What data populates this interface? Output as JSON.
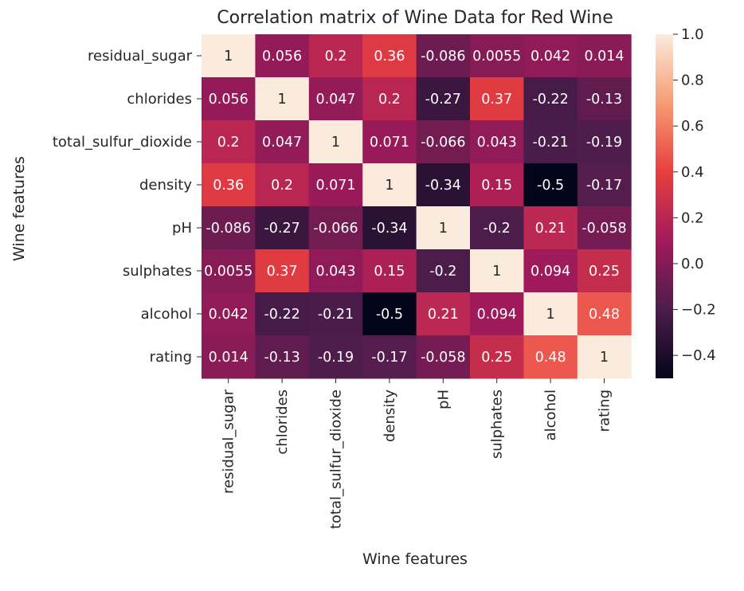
{
  "chart_data": {
    "type": "heatmap",
    "title": "Correlation matrix of Wine Data for Red Wine",
    "xlabel": "Wine features",
    "ylabel": "Wine features",
    "rows": [
      "residual_sugar",
      "chlorides",
      "total_sulfur_dioxide",
      "density",
      "pH",
      "sulphates",
      "alcohol",
      "rating"
    ],
    "columns": [
      "residual_sugar",
      "chlorides",
      "total_sulfur_dioxide",
      "density",
      "pH",
      "sulphates",
      "alcohol",
      "rating"
    ],
    "values": [
      [
        1,
        0.056,
        0.2,
        0.36,
        -0.086,
        0.0055,
        0.042,
        0.014
      ],
      [
        0.056,
        1,
        0.047,
        0.2,
        -0.27,
        0.37,
        -0.22,
        -0.13
      ],
      [
        0.2,
        0.047,
        1,
        0.071,
        -0.066,
        0.043,
        -0.21,
        -0.19
      ],
      [
        0.36,
        0.2,
        0.071,
        1,
        -0.34,
        0.15,
        -0.5,
        -0.17
      ],
      [
        -0.086,
        -0.27,
        -0.066,
        -0.34,
        1,
        -0.2,
        0.21,
        -0.058
      ],
      [
        0.0055,
        0.37,
        0.043,
        0.15,
        -0.2,
        1,
        0.094,
        0.25
      ],
      [
        0.042,
        -0.22,
        -0.21,
        -0.5,
        0.21,
        0.094,
        1,
        0.48
      ],
      [
        0.014,
        -0.13,
        -0.19,
        -0.17,
        -0.058,
        0.25,
        0.48,
        1
      ]
    ],
    "annotations": [
      [
        "1",
        "0.056",
        "0.2",
        "0.36",
        "-0.086",
        "0.0055",
        "0.042",
        "0.014"
      ],
      [
        "0.056",
        "1",
        "0.047",
        "0.2",
        "-0.27",
        "0.37",
        "-0.22",
        "-0.13"
      ],
      [
        "0.2",
        "0.047",
        "1",
        "0.071",
        "-0.066",
        "0.043",
        "-0.21",
        "-0.19"
      ],
      [
        "0.36",
        "0.2",
        "0.071",
        "1",
        "-0.34",
        "0.15",
        "-0.5",
        "-0.17"
      ],
      [
        "-0.086",
        "-0.27",
        "-0.066",
        "-0.34",
        "1",
        "-0.2",
        "0.21",
        "-0.058"
      ],
      [
        "0.0055",
        "0.37",
        "0.043",
        "0.15",
        "-0.2",
        "1",
        "0.094",
        "0.25"
      ],
      [
        "0.042",
        "-0.22",
        "-0.21",
        "-0.5",
        "0.21",
        "0.094",
        "1",
        "0.48"
      ],
      [
        "0.014",
        "-0.13",
        "-0.19",
        "-0.17",
        "-0.058",
        "0.25",
        "0.48",
        "1"
      ]
    ],
    "colorbar": {
      "vmin": -0.5,
      "vmax": 1.0,
      "ticks": [
        1.0,
        0.8,
        0.6,
        0.4,
        0.2,
        0.0,
        -0.2,
        -0.4
      ],
      "tick_labels": [
        "1.0",
        "0.8",
        "0.6",
        "0.4",
        "0.2",
        "0.0",
        "−0.2",
        "−0.4"
      ],
      "colormap": "rocket",
      "colors": [
        "#03051a",
        "#4c1d4b",
        "#a11a5b",
        "#e83f3f",
        "#f69c73",
        "#faebdd"
      ]
    }
  }
}
